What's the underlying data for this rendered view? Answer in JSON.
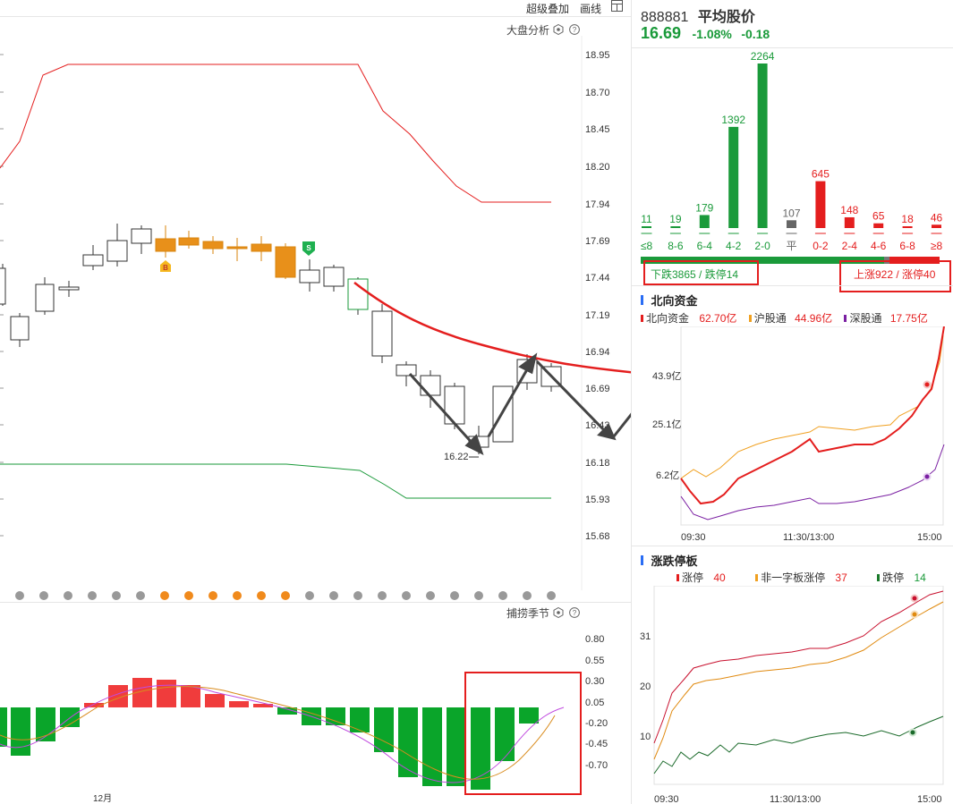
{
  "toolbar": {
    "overlay": "超级叠加",
    "draw": "画线"
  },
  "main_chart": {
    "analysis_label": "大盘分析",
    "y_ticks": [
      "18.95",
      "18.70",
      "18.45",
      "18.20",
      "17.94",
      "17.69",
      "17.44",
      "17.19",
      "16.94",
      "16.69",
      "16.43",
      "16.18",
      "15.93",
      "15.68"
    ],
    "low_label": "16.22",
    "buy_marker": "B",
    "sell_marker": "S"
  },
  "indicator": {
    "title": "捕捞季节",
    "y_ticks": [
      "0.80",
      "0.55",
      "0.30",
      "0.05",
      "-0.20",
      "-0.45",
      "-0.70"
    ],
    "x_label": "12月"
  },
  "quote": {
    "code": "888881",
    "name": "平均股价",
    "price": "16.69",
    "change_pct": "-1.08%",
    "change": "-0.18"
  },
  "distribution": {
    "buckets": [
      {
        "label": "≤8",
        "count": "11",
        "color": "#1a9a3a"
      },
      {
        "label": "8-6",
        "count": "19",
        "color": "#1a9a3a"
      },
      {
        "label": "6-4",
        "count": "179",
        "color": "#1a9a3a"
      },
      {
        "label": "4-2",
        "count": "1392",
        "color": "#1a9a3a"
      },
      {
        "label": "2-0",
        "count": "2264",
        "color": "#1a9a3a"
      },
      {
        "label": "平",
        "count": "107",
        "color": "#666666"
      },
      {
        "label": "0-2",
        "count": "645",
        "color": "#e41e1e"
      },
      {
        "label": "2-4",
        "count": "148",
        "color": "#e41e1e"
      },
      {
        "label": "4-6",
        "count": "65",
        "color": "#e41e1e"
      },
      {
        "label": "6-8",
        "count": "18",
        "color": "#e41e1e"
      },
      {
        "label": "≥8",
        "count": "46",
        "color": "#e41e1e"
      }
    ],
    "down_summary": "下跌3865 / 跌停14",
    "up_summary": "上涨922 / 涨停40"
  },
  "northbound": {
    "title": "北向资金",
    "legend": [
      {
        "name": "北向资金",
        "value": "62.70亿",
        "color": "#e41e1e"
      },
      {
        "name": "沪股通",
        "value": "44.96亿",
        "color": "#f0a020"
      },
      {
        "name": "深股通",
        "value": "17.75亿",
        "color": "#7a1fa2"
      }
    ],
    "y_ticks": [
      "43.9亿",
      "25.1亿",
      "6.2亿"
    ],
    "x_ticks": [
      "09:30",
      "11:30/13:00",
      "15:00"
    ]
  },
  "limit_board": {
    "title": "涨跌停板",
    "legend": [
      {
        "name": "涨停",
        "value": "40",
        "color": "#e41e1e"
      },
      {
        "name": "非一字板涨停",
        "value": "37",
        "color": "#f0a020"
      },
      {
        "name": "跌停",
        "value": "14",
        "color": "#1a7a2a"
      }
    ],
    "y_ticks": [
      "31",
      "20",
      "10"
    ],
    "x_ticks": [
      "09:30",
      "11:30/13:00",
      "15:00"
    ]
  }
}
